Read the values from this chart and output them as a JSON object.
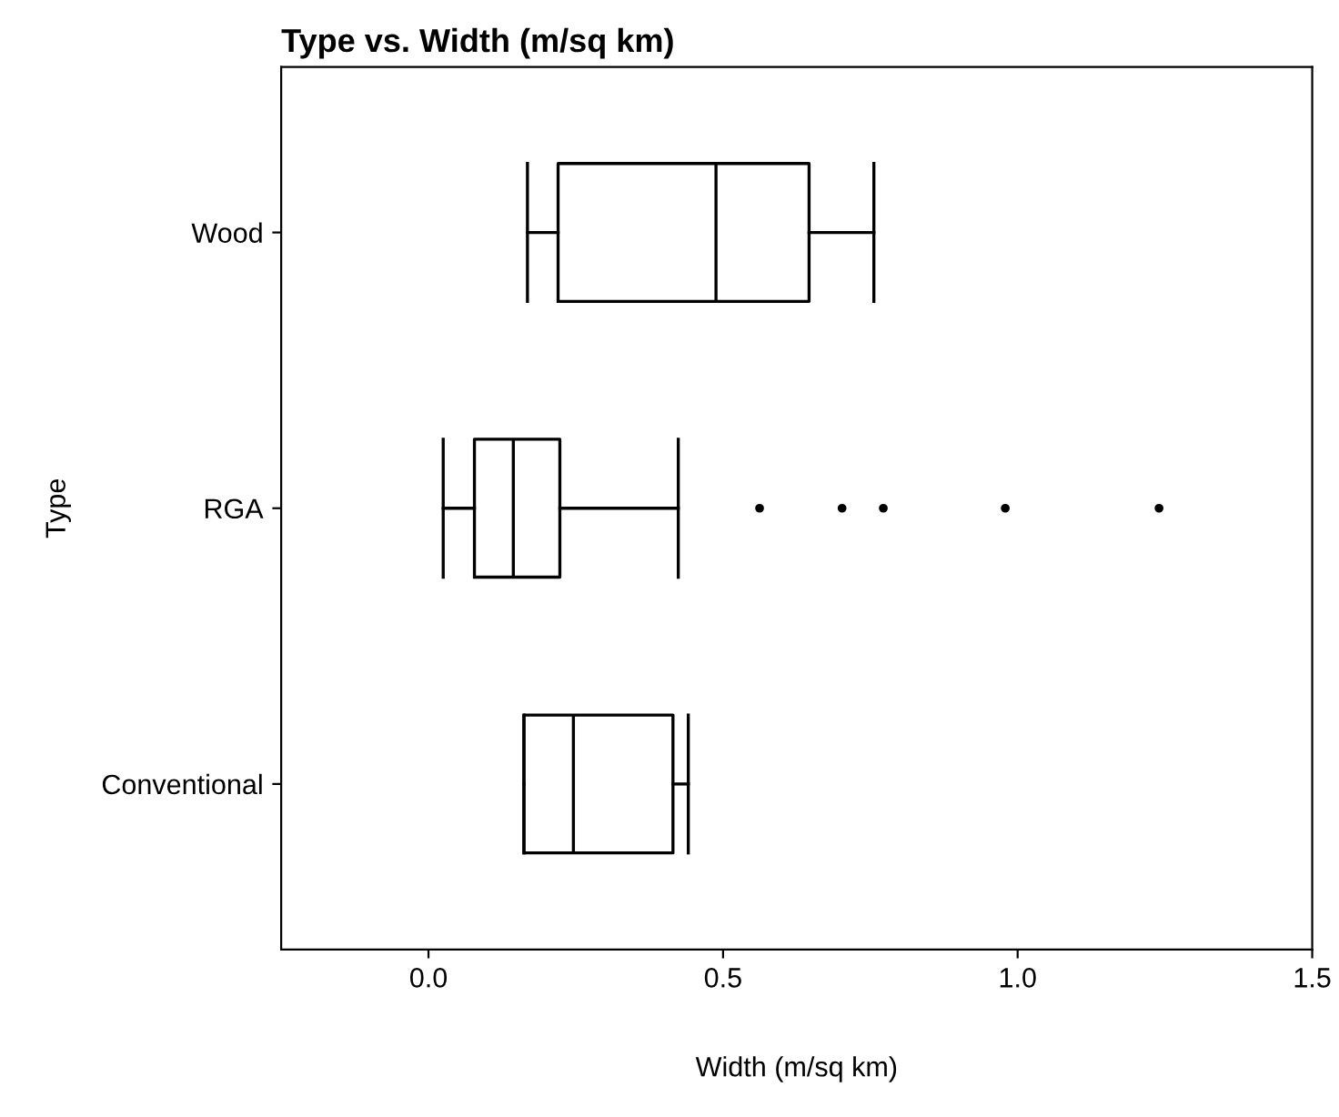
{
  "chart_data": {
    "type": "box",
    "title": "Type vs. Width (m/sq km)",
    "xlabel": "Width (m/sq km)",
    "ylabel": "Type",
    "orientation": "horizontal",
    "categories": [
      "Wood",
      "RGA",
      "Conventional"
    ],
    "color": "#000000",
    "grid": false,
    "legend": false,
    "boxes": [
      {
        "low": 0.168,
        "q1": 0.22,
        "median": 0.488,
        "q3": 0.646,
        "high": 0.756
      },
      {
        "low": 0.025,
        "q1": 0.078,
        "median": 0.144,
        "q3": 0.223,
        "high": 0.424,
        "outliers": [
          0.562,
          0.772,
          0.979,
          1.24,
          0.702
        ]
      },
      {
        "low": 0.162,
        "q1": 0.162,
        "median": 0.246,
        "q3": 0.415,
        "high": 0.441
      }
    ],
    "xlim": [
      -0.25,
      1.5
    ],
    "xticks": [
      {
        "value": 0,
        "label": "0.0"
      },
      {
        "value": 0.5,
        "label": "0.5"
      },
      {
        "value": 1,
        "label": "1.0"
      },
      {
        "value": 1.5,
        "label": "1.5"
      }
    ]
  }
}
